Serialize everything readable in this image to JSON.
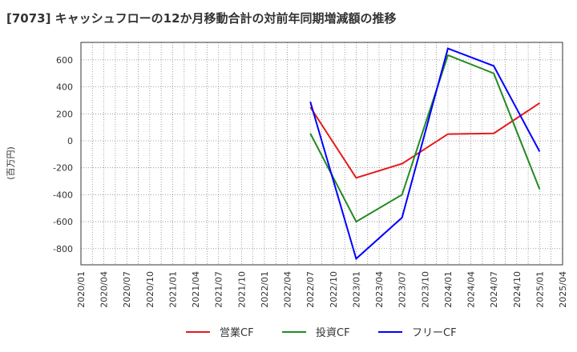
{
  "chart_data": {
    "type": "line",
    "title": "[7073]  キャッシュフローの12か月移動合計の対前年同期増減額の推移",
    "ylabel": "(百万円)",
    "xlabel": "",
    "ylim": [
      -920,
      730
    ],
    "yticks": [
      600,
      400,
      200,
      0,
      -200,
      -400,
      -600,
      -800
    ],
    "ytick_labels": [
      "600",
      "400",
      "200",
      "0",
      "-200",
      "-400",
      "-600",
      "-800"
    ],
    "x_tick_labels": [
      "2020/01",
      "2020/04",
      "2020/07",
      "2020/10",
      "2021/01",
      "2021/04",
      "2021/07",
      "2021/10",
      "2022/01",
      "2022/04",
      "2022/07",
      "2022/10",
      "2023/01",
      "2023/04",
      "2023/07",
      "2023/10",
      "2024/01",
      "2024/04",
      "2024/07",
      "2024/10",
      "2025/01",
      "2025/04"
    ],
    "grid": true,
    "legend_position": "bottom",
    "series": [
      {
        "name": "営業CF",
        "color": "#e41a1c",
        "points": [
          {
            "x": 10,
            "y": 250
          },
          {
            "x": 12,
            "y": -275
          },
          {
            "x": 14,
            "y": -170
          },
          {
            "x": 16,
            "y": 50
          },
          {
            "x": 18,
            "y": 55
          },
          {
            "x": 20,
            "y": 280
          }
        ]
      },
      {
        "name": "投資CF",
        "color": "#228b22",
        "points": [
          {
            "x": 10,
            "y": 55
          },
          {
            "x": 12,
            "y": -600
          },
          {
            "x": 14,
            "y": -400
          },
          {
            "x": 16,
            "y": 635
          },
          {
            "x": 18,
            "y": 500
          },
          {
            "x": 20,
            "y": -360
          }
        ]
      },
      {
        "name": "フリーCF",
        "color": "#0000ff",
        "points": [
          {
            "x": 10,
            "y": 290
          },
          {
            "x": 12,
            "y": -875
          },
          {
            "x": 14,
            "y": -570
          },
          {
            "x": 16,
            "y": 685
          },
          {
            "x": 18,
            "y": 555
          },
          {
            "x": 20,
            "y": -80
          }
        ]
      }
    ]
  }
}
